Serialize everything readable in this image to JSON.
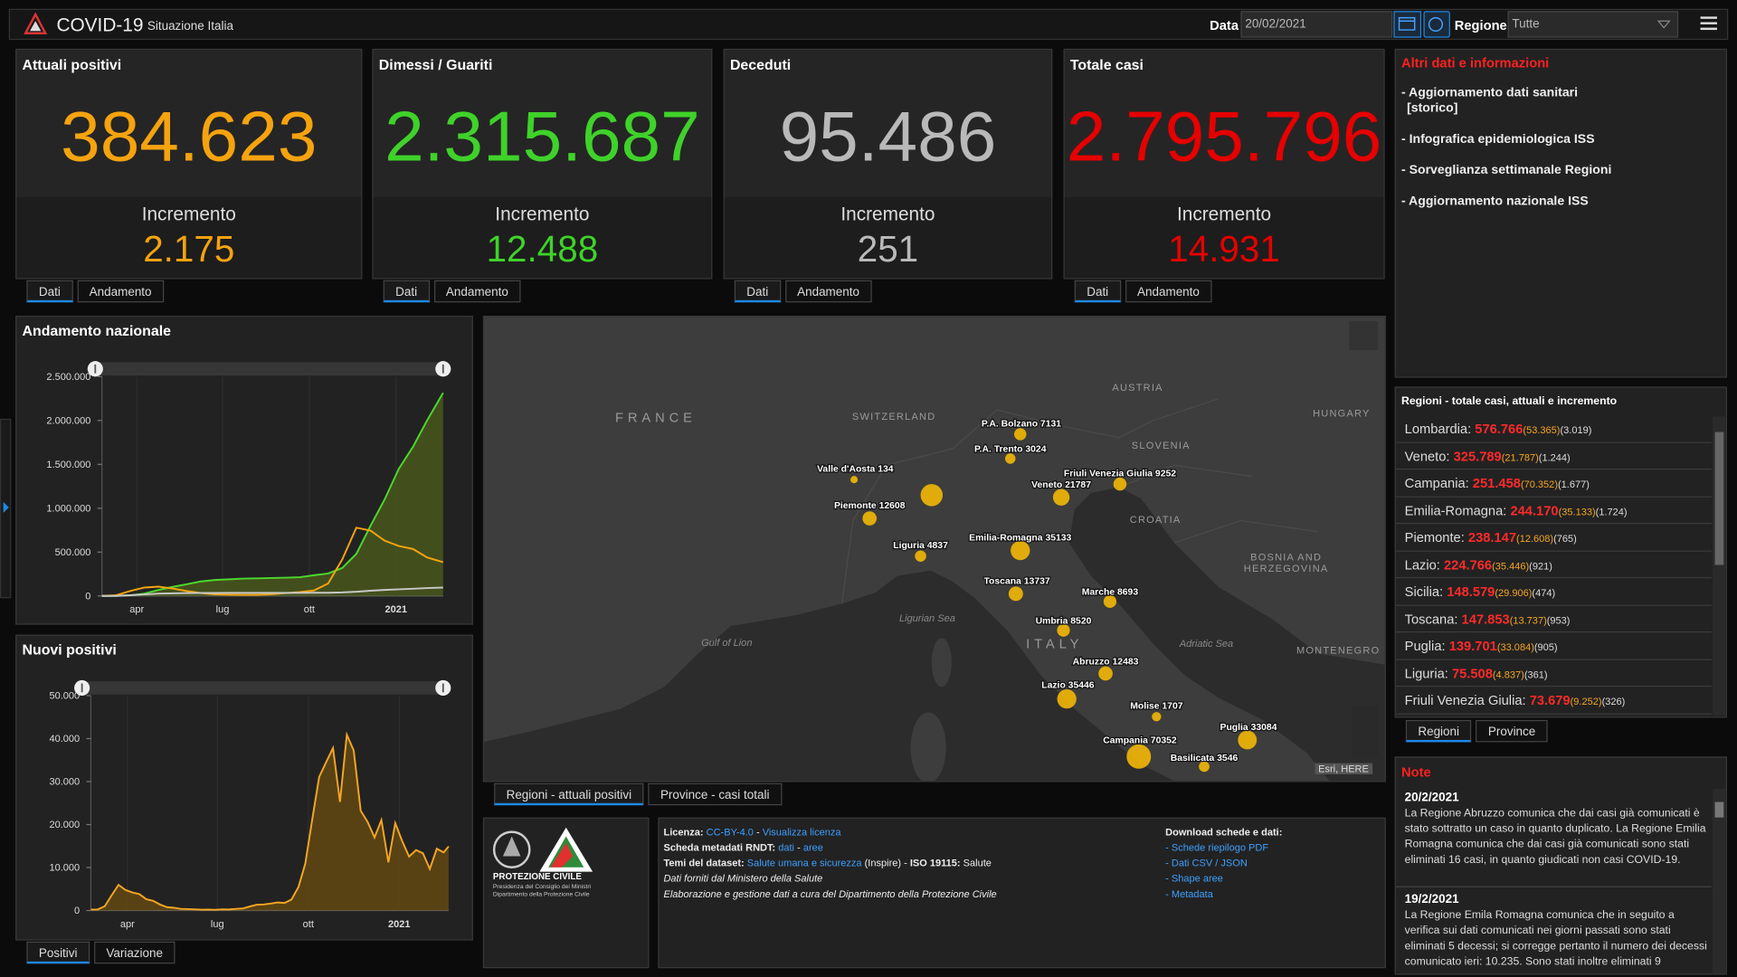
{
  "header": {
    "title": "COVID-19",
    "subtitle": "Situazione Italia",
    "date_label": "Data",
    "date": "20/02/2021",
    "region_label": "Regione",
    "region": "Tutte"
  },
  "cards": [
    {
      "title": "Attuali positivi",
      "value": "384.623",
      "increment_label": "Incremento",
      "increment": "2.175",
      "color": "#f5a30f",
      "tabs": [
        "Dati",
        "Andamento"
      ]
    },
    {
      "title": "Dimessi / Guariti",
      "value": "2.315.687",
      "increment_label": "Incremento",
      "increment": "12.488",
      "color": "#3fd22a",
      "tabs": [
        "Dati",
        "Andamento"
      ]
    },
    {
      "title": "Deceduti",
      "value": "95.486",
      "increment_label": "Incremento",
      "increment": "251",
      "color": "#b9b9b9",
      "tabs": [
        "Dati",
        "Andamento"
      ]
    },
    {
      "title": "Totale casi",
      "value": "2.795.796",
      "increment_label": "Incremento",
      "increment": "14.931",
      "color": "#e60000",
      "tabs": [
        "Dati",
        "Andamento"
      ]
    }
  ],
  "info": {
    "title": "Altri dati e informazioni",
    "links": [
      [
        "- Aggiornamento dati sanitari",
        "[storico]"
      ],
      [
        "- Infografica epidemiologica ISS"
      ],
      [
        "- Sorveglianza settimanale Regioni"
      ],
      [
        "- Aggiornamento nazionale ISS"
      ]
    ]
  },
  "chart_data": [
    {
      "type": "line",
      "title": "Andamento nazionale",
      "x": [
        0,
        15,
        30,
        45,
        60,
        75,
        90,
        105,
        120,
        135,
        150,
        165,
        180,
        195,
        210,
        225,
        240,
        255,
        270,
        285,
        300,
        315,
        330,
        345,
        362
      ],
      "xlim": [
        0,
        362
      ],
      "xticks": [
        {
          "value": 37,
          "label": "apr"
        },
        {
          "value": 128,
          "label": "lug"
        },
        {
          "value": 220,
          "label": "ott"
        },
        {
          "value": 312,
          "label": "2021"
        }
      ],
      "ylim": [
        0,
        2500000
      ],
      "yticks": [
        0,
        {
          "value": 500000,
          "label": "500.000"
        },
        {
          "value": 1000000,
          "label": "1.000.000"
        },
        {
          "value": 1500000,
          "label": "1.500.000"
        },
        {
          "value": 2000000,
          "label": "2.000.000"
        },
        {
          "value": 2500000,
          "label": "2.500.000"
        }
      ],
      "series": [
        {
          "color": "#4cd92d",
          "fill": "#4e5f1c",
          "values": [
            0,
            1000,
            8000,
            26000,
            68000,
            103000,
            134000,
            165000,
            182000,
            190000,
            198000,
            201000,
            204000,
            208000,
            214000,
            236000,
            256000,
            320000,
            480000,
            800000,
            1100000,
            1450000,
            1700000,
            2000000,
            2315687
          ]
        },
        {
          "color": "#f5a30f",
          "values": [
            200,
            8000,
            57000,
            96000,
            106000,
            84000,
            55000,
            33000,
            18000,
            14000,
            12000,
            13000,
            19000,
            33000,
            44000,
            62000,
            142000,
            418000,
            778000,
            745000,
            630000,
            570000,
            535000,
            440000,
            384623
          ]
        },
        {
          "color": "#c8c8c8",
          "values": [
            7,
            630,
            7500,
            18300,
            26000,
            30200,
            32700,
            33900,
            34700,
            34900,
            35100,
            35200,
            35400,
            35500,
            35700,
            36000,
            36700,
            39800,
            48600,
            59500,
            68800,
            75700,
            82600,
            89300,
            95486
          ]
        }
      ]
    },
    {
      "type": "area",
      "title": "Nuovi positivi",
      "x": [
        0,
        7,
        14,
        21,
        28,
        35,
        42,
        49,
        56,
        63,
        70,
        77,
        84,
        91,
        98,
        105,
        112,
        119,
        126,
        133,
        140,
        147,
        154,
        161,
        168,
        175,
        182,
        189,
        196,
        203,
        210,
        217,
        224,
        231,
        238,
        245,
        252,
        259,
        266,
        273,
        280,
        287,
        294,
        301,
        308,
        315,
        322,
        329,
        336,
        343,
        350,
        357,
        362
      ],
      "values": [
        221,
        250,
        977,
        3497,
        5974,
        4782,
        4204,
        3836,
        2646,
        2256,
        1402,
        802,
        642,
        397,
        333,
        280,
        202,
        230,
        190,
        282,
        252,
        384,
        482,
        947,
        1367,
        1411,
        1617,
        1869,
        1766,
        2548,
        5456,
        10925,
        21273,
        31084,
        34505,
        37809,
        25271,
        40902,
        37242,
        23232,
        20648,
        16999,
        21052,
        11210,
        20331,
        16146,
        12545,
        14078,
        13331,
        9660,
        14372,
        13532,
        14931
      ],
      "color": "#f5a623",
      "fill": "#6b4d10",
      "xlim": [
        0,
        362
      ],
      "xticks": [
        {
          "value": 37,
          "label": "apr"
        },
        {
          "value": 128,
          "label": "lug"
        },
        {
          "value": 220,
          "label": "ott"
        },
        {
          "value": 312,
          "label": "2021"
        }
      ],
      "ylim": [
        0,
        50000
      ],
      "yticks": [
        0,
        {
          "value": 10000,
          "label": "10.000"
        },
        {
          "value": 20000,
          "label": "20.000"
        },
        {
          "value": 30000,
          "label": "30.000"
        },
        {
          "value": 40000,
          "label": "40.000"
        },
        {
          "value": 50000,
          "label": "50.000"
        }
      ],
      "tabs": [
        "Positivi",
        "Variazione"
      ]
    }
  ],
  "map": {
    "places": [
      "FRANCE",
      "SWITZERLAND",
      "AUSTRIA",
      "HUNGARY",
      "SLOVENIA",
      "CROATIA",
      "BOSNIA AND HERZEGOVINA",
      "MONTENEGRO",
      "ITALY",
      "Ligurian Sea",
      "Gulf of Lion",
      "Adriatic Sea"
    ],
    "attribution": "Esri, HERE",
    "points": [
      {
        "label": "Valle d'Aosta 134",
        "value": 134
      },
      {
        "label": "Piemonte 12608",
        "value": 12608
      },
      {
        "label": null,
        "value": 53365
      },
      {
        "label": "Liguria 4837",
        "value": 4837
      },
      {
        "label": "P.A. Bolzano 7131",
        "value": 7131
      },
      {
        "label": "P.A. Trento 3024",
        "value": 3024
      },
      {
        "label": "Veneto 21787",
        "value": 21787
      },
      {
        "label": "Friuli Venezia Giulia 9252",
        "value": 9252
      },
      {
        "label": "Emilia-Romagna 35133",
        "value": 35133
      },
      {
        "label": "Toscana 13737",
        "value": 13737
      },
      {
        "label": "Marche 8693",
        "value": 8693
      },
      {
        "label": "Umbria 8520",
        "value": 8520
      },
      {
        "label": "Abruzzo 12483",
        "value": 12483
      },
      {
        "label": "Lazio 35446",
        "value": 35446
      },
      {
        "label": "Molise 1707",
        "value": 1707
      },
      {
        "label": "Puglia 33084",
        "value": 33084
      },
      {
        "label": "Campania 70352",
        "value": 70352
      },
      {
        "label": "Basilicata 3546",
        "value": 3546
      }
    ],
    "tabs": [
      "Regioni - attuali positivi",
      "Province - casi totali"
    ]
  },
  "regions": {
    "title": "Regioni - totale casi, attuali e incremento",
    "tabs": [
      "Regioni",
      "Province"
    ],
    "rows": [
      {
        "name": "Lombardia:",
        "total": "576.766",
        "active": "(53.365)",
        "incr": "(3.019)"
      },
      {
        "name": "Veneto:",
        "total": "325.789",
        "active": "(21.787)",
        "incr": "(1.244)"
      },
      {
        "name": "Campania:",
        "total": "251.458",
        "active": "(70.352)",
        "incr": "(1.677)"
      },
      {
        "name": "Emilia-Romagna:",
        "total": "244.170",
        "active": "(35.133)",
        "incr": "(1.724)"
      },
      {
        "name": "Piemonte:",
        "total": "238.147",
        "active": "(12.608)",
        "incr": "(765)"
      },
      {
        "name": "Lazio:",
        "total": "224.766",
        "active": "(35.446)",
        "incr": "(921)"
      },
      {
        "name": "Sicilia:",
        "total": "148.579",
        "active": "(29.906)",
        "incr": "(474)"
      },
      {
        "name": "Toscana:",
        "total": "147.853",
        "active": "(13.737)",
        "incr": "(953)"
      },
      {
        "name": "Puglia:",
        "total": "139.701",
        "active": "(33.084)",
        "incr": "(905)"
      },
      {
        "name": "Liguria:",
        "total": "75.508",
        "active": "(4.837)",
        "incr": "(361)"
      },
      {
        "name": "Friuli Venezia Giulia:",
        "total": "73.679",
        "active": "(9.252)",
        "incr": "(326)"
      }
    ]
  },
  "notes": {
    "title": "Note",
    "entries": [
      {
        "date": "20/2/2021",
        "text": "La Regione Abruzzo comunica che dai casi già comunicati è stato sottratto un caso in quanto duplicato. La Regione Emilia Romagna comunica che dai casi già comunicati sono stati eliminati 16 casi, in quanto giudicati non casi COVID-19."
      },
      {
        "date": "19/2/2021",
        "text": "La Regione Emila Romagna comunica che in seguito a verifica sui dati comunicati nei giorni passati sono stati eliminati 5 decessi; si corregge pertanto il numero dei decessi comunicato ieri: 10.235. Sono stati inoltre eliminati 9"
      }
    ]
  },
  "footer": {
    "logo": [
      "PROTEZIONE CIVILE",
      "Presidenza del Consiglio dei Ministri",
      "Dipartimento della Protezione Civile"
    ],
    "left": [
      [
        {
          "t": "Licenza: ",
          "s": "b"
        },
        {
          "t": "CC-BY-4.0",
          "s": "link"
        },
        {
          "t": " - ",
          "s": "n"
        },
        {
          "t": "Visualizza licenza",
          "s": "link"
        }
      ],
      [
        {
          "t": "Scheda metadati RNDT: ",
          "s": "b"
        },
        {
          "t": "dati",
          "s": "link"
        },
        {
          "t": " - ",
          "s": "n"
        },
        {
          "t": "aree",
          "s": "link"
        }
      ],
      [
        {
          "t": "Temi del dataset: ",
          "s": "b"
        },
        {
          "t": "Salute umana e sicurezza",
          "s": "link"
        },
        {
          "t": " (Inspire) - ",
          "s": "n"
        },
        {
          "t": "ISO 19115:",
          "s": "b"
        },
        {
          "t": " Salute",
          "s": "n"
        }
      ],
      [
        {
          "t": "Dati forniti dal Ministero della Salute",
          "s": "i"
        }
      ],
      [
        {
          "t": "Elaborazione e gestione dati a cura del Dipartimento della Protezione Civile",
          "s": "i"
        }
      ]
    ],
    "right": [
      [
        {
          "t": "Download schede e dati:",
          "s": "b"
        }
      ],
      [
        {
          "t": "- ",
          "s": "link"
        },
        {
          "t": "Schede riepilogo PDF",
          "s": "link"
        }
      ],
      [
        {
          "t": "- ",
          "s": "link"
        },
        {
          "t": "Dati CSV / JSON",
          "s": "link"
        }
      ],
      [
        {
          "t": "- ",
          "s": "link"
        },
        {
          "t": "Shape aree",
          "s": "link"
        }
      ],
      [
        {
          "t": "- ",
          "s": "link"
        },
        {
          "t": "Metadata",
          "s": "link"
        }
      ]
    ]
  }
}
